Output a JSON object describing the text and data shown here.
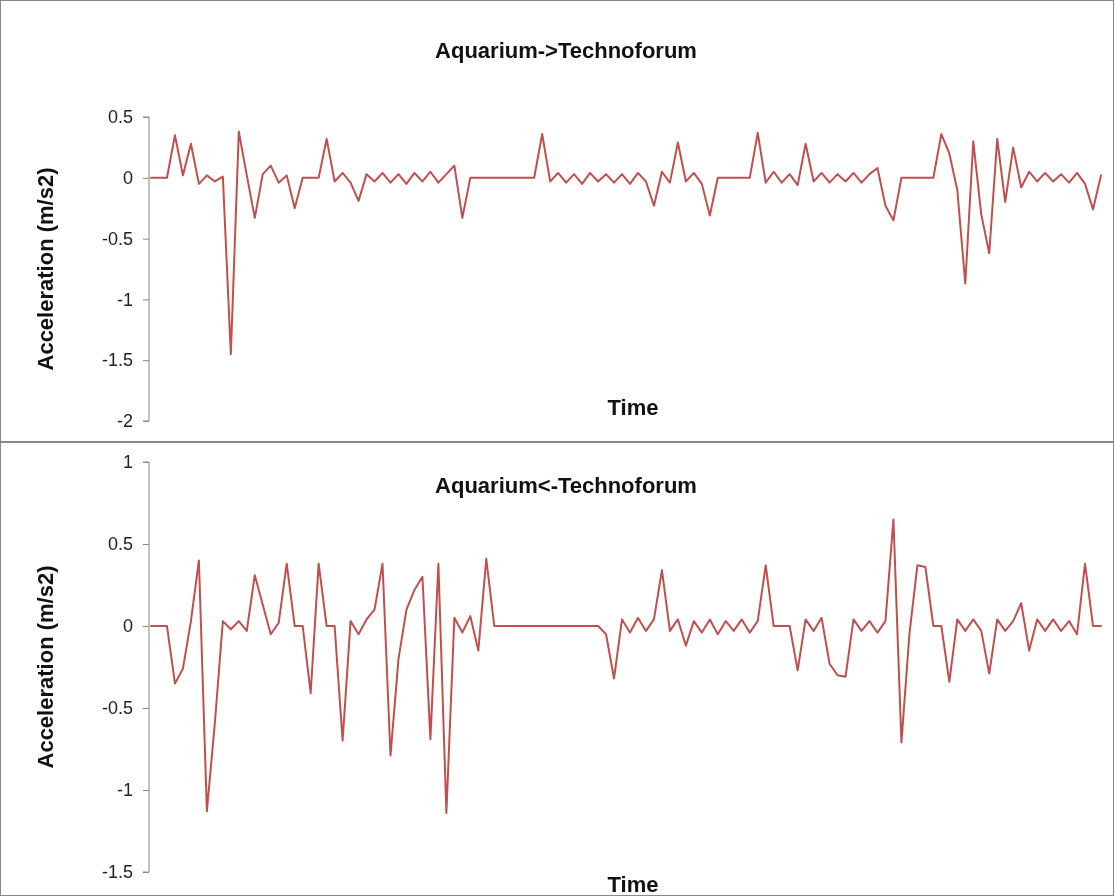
{
  "chart_data": [
    {
      "type": "line",
      "title": "Aquarium->Technoforum",
      "xlabel": "Time",
      "ylabel": "Acceleration (m/s2)",
      "ylim": [
        -2,
        0.5
      ],
      "yticks": [
        -2,
        -1.5,
        -1,
        -0.5,
        0,
        0.5
      ],
      "tick_labels": "y",
      "color": "#c0504d",
      "categories": [
        null,
        null,
        null,
        null,
        null,
        null,
        null,
        null,
        null,
        null,
        null,
        null,
        null,
        null,
        null,
        null,
        null,
        null,
        null,
        null,
        null,
        null,
        null,
        null,
        null,
        null,
        null,
        null,
        null,
        null,
        null,
        null,
        null,
        null,
        null,
        null,
        null,
        null,
        null,
        null,
        null,
        null,
        null,
        null,
        null,
        null,
        null,
        null,
        null,
        null,
        null,
        null,
        null,
        null,
        null,
        null,
        null,
        null,
        null,
        null,
        null,
        null,
        null,
        null,
        null,
        null,
        null,
        null,
        null,
        null,
        null,
        null,
        null,
        null,
        null,
        null,
        null,
        null,
        null,
        null,
        null,
        null,
        null,
        null,
        null,
        null,
        null,
        null,
        null,
        null,
        null,
        null,
        null,
        null,
        null,
        null,
        null,
        null,
        null,
        null,
        null,
        null,
        null,
        null,
        null,
        null,
        null,
        null,
        null,
        null,
        null,
        null,
        null,
        null,
        null,
        null,
        null,
        null,
        null,
        null
      ],
      "values": [
        0,
        0,
        0,
        0.35,
        0.02,
        0.28,
        -0.05,
        0.02,
        -0.03,
        0.01,
        -1.45,
        0.38,
        0.02,
        -0.33,
        0.03,
        0.1,
        -0.04,
        0.02,
        -0.25,
        0,
        0,
        0,
        0.32,
        -0.03,
        0.04,
        -0.04,
        -0.19,
        0.03,
        -0.03,
        0.04,
        -0.04,
        0.03,
        -0.05,
        0.04,
        -0.03,
        0.05,
        -0.04,
        0.03,
        0.1,
        -0.33,
        0,
        0,
        0,
        0,
        0,
        0,
        0,
        0,
        0,
        0.36,
        -0.03,
        0.04,
        -0.04,
        0.03,
        -0.05,
        0.04,
        -0.03,
        0.03,
        -0.04,
        0.03,
        -0.05,
        0.04,
        -0.03,
        -0.23,
        0.05,
        -0.04,
        0.29,
        -0.03,
        0.04,
        -0.05,
        -0.31,
        0,
        0,
        0,
        0,
        0,
        0.37,
        -0.04,
        0.05,
        -0.04,
        0.03,
        -0.06,
        0.28,
        -0.03,
        0.04,
        -0.04,
        0.03,
        -0.03,
        0.04,
        -0.04,
        0.03,
        0.08,
        -0.23,
        -0.35,
        0,
        0,
        0,
        0,
        0,
        0.36,
        0.2,
        -0.1,
        -0.87,
        0.3,
        -0.3,
        -0.62,
        0.32,
        -0.2,
        0.25,
        -0.08,
        0.05,
        -0.03,
        0.04,
        -0.03,
        0.03,
        -0.04,
        0.04,
        -0.05,
        -0.26,
        0.02
      ]
    },
    {
      "type": "line",
      "title": "Aquarium<-Technoforum",
      "xlabel": "Time",
      "ylabel": "Acceleration (m/s2)",
      "ylim": [
        -1.5,
        1
      ],
      "yticks": [
        -1.5,
        -1,
        -0.5,
        0,
        0.5,
        1
      ],
      "tick_labels": "y",
      "color": "#c0504d",
      "categories": [
        null,
        null,
        null,
        null,
        null,
        null,
        null,
        null,
        null,
        null,
        null,
        null,
        null,
        null,
        null,
        null,
        null,
        null,
        null,
        null,
        null,
        null,
        null,
        null,
        null,
        null,
        null,
        null,
        null,
        null,
        null,
        null,
        null,
        null,
        null,
        null,
        null,
        null,
        null,
        null,
        null,
        null,
        null,
        null,
        null,
        null,
        null,
        null,
        null,
        null,
        null,
        null,
        null,
        null,
        null,
        null,
        null,
        null,
        null,
        null,
        null,
        null,
        null,
        null,
        null,
        null,
        null,
        null,
        null,
        null,
        null,
        null,
        null,
        null,
        null,
        null,
        null,
        null,
        null,
        null,
        null,
        null,
        null,
        null,
        null,
        null,
        null,
        null,
        null,
        null,
        null,
        null,
        null,
        null,
        null,
        null,
        null,
        null,
        null,
        null,
        null,
        null,
        null,
        null,
        null,
        null,
        null,
        null,
        null,
        null,
        null,
        null,
        null,
        null,
        null,
        null,
        null,
        null,
        null,
        null
      ],
      "values": [
        0,
        0,
        0,
        -0.35,
        -0.26,
        0.03,
        0.4,
        -1.13,
        -0.59,
        0.03,
        -0.02,
        0.03,
        -0.03,
        0.31,
        0.13,
        -0.05,
        0.02,
        0.38,
        0,
        0,
        -0.41,
        0.38,
        0,
        0,
        -0.7,
        0.03,
        -0.05,
        0.04,
        0.1,
        0.38,
        -0.79,
        -0.2,
        0.1,
        0.22,
        0.3,
        -0.69,
        0.38,
        -1.14,
        0.05,
        -0.04,
        0.06,
        -0.15,
        0.41,
        0,
        0,
        0,
        0,
        0,
        0,
        0,
        0,
        0,
        0,
        0,
        0,
        0,
        0,
        -0.05,
        -0.32,
        0.04,
        -0.04,
        0.05,
        -0.03,
        0.04,
        0.34,
        -0.03,
        0.04,
        -0.12,
        0.03,
        -0.04,
        0.04,
        -0.05,
        0.03,
        -0.03,
        0.04,
        -0.04,
        0.03,
        0.37,
        0,
        0,
        0,
        -0.27,
        0.04,
        -0.03,
        0.05,
        -0.23,
        -0.3,
        -0.31,
        0.04,
        -0.03,
        0.03,
        -0.04,
        0.03,
        0.65,
        -0.71,
        -0.05,
        0.37,
        0.36,
        0,
        0,
        -0.34,
        0.04,
        -0.03,
        0.04,
        -0.03,
        -0.29,
        0.04,
        -0.03,
        0.03,
        0.14,
        -0.15,
        0.04,
        -0.03,
        0.04,
        -0.03,
        0.03,
        -0.05,
        0.38,
        0,
        0
      ]
    }
  ]
}
